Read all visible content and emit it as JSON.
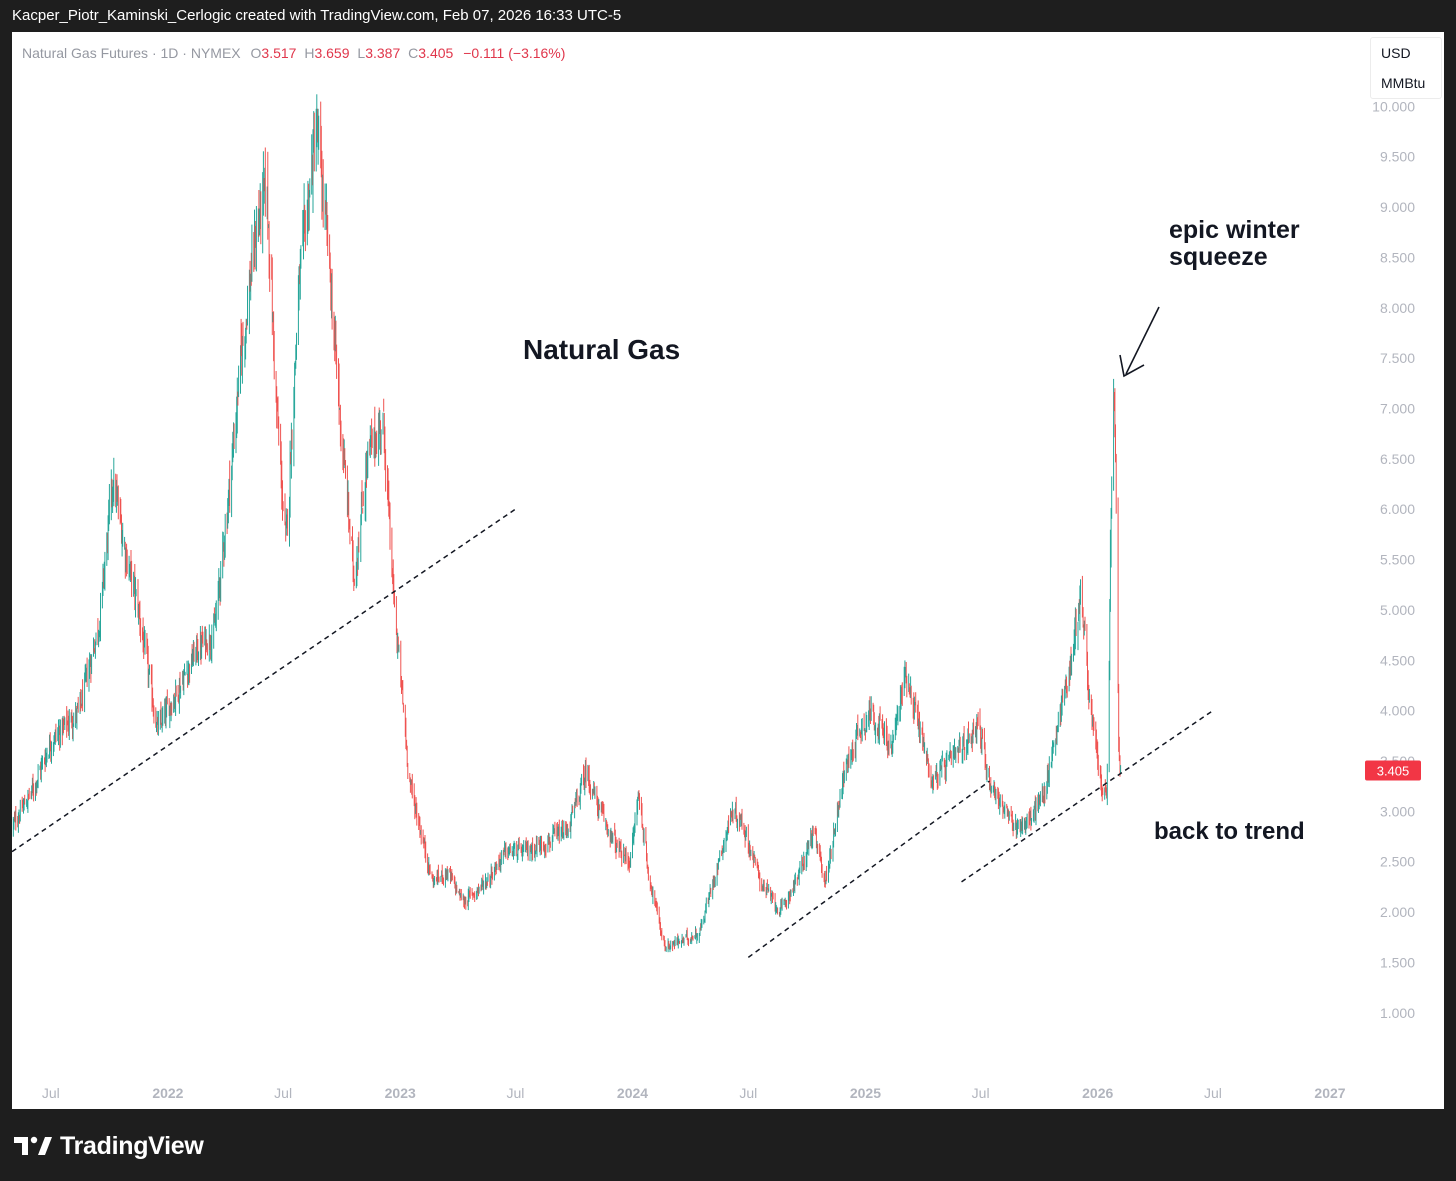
{
  "header": {
    "attribution": "Kacper_Piotr_Kaminski_Cerlogic created with TradingView.com, Feb 07, 2026 16:33 UTC-5"
  },
  "legend": {
    "symbol": "Natural Gas Futures · 1D · NYMEX",
    "o_label": "O",
    "o_value": "3.517",
    "h_label": "H",
    "h_value": "3.659",
    "l_label": "L",
    "l_value": "3.387",
    "c_label": "C",
    "c_value": "3.405",
    "change": "−0.111 (−3.16%)"
  },
  "units": {
    "currency": "USD",
    "unit": "MMBtu"
  },
  "annotations": {
    "title": "Natural Gas",
    "squeeze_line1": "epic winter",
    "squeeze_line2": "squeeze",
    "trend": "back to trend"
  },
  "price_tag": {
    "value": "3.405",
    "color": "#f23645"
  },
  "colors": {
    "up": "#26a69a",
    "down": "#ef5350",
    "tag": "#f23645"
  },
  "footer": {
    "brand": "TradingView",
    "logo_icon": "tradingview-logo-icon"
  },
  "chart_data": {
    "type": "candlestick",
    "title": "Natural Gas",
    "xlabel": "",
    "ylabel": "",
    "ylim": [
      0.7,
      10.45
    ],
    "y_ticks": [
      "1.000",
      "1.500",
      "2.000",
      "2.500",
      "3.000",
      "3.500",
      "4.000",
      "4.500",
      "5.000",
      "5.500",
      "6.000",
      "6.500",
      "7.000",
      "7.500",
      "8.000",
      "8.500",
      "9.000",
      "9.500",
      "10.000"
    ],
    "x_ticks": [
      {
        "label": "Jul",
        "date": "2021-07-01"
      },
      {
        "label": "2022",
        "date": "2022-01-01"
      },
      {
        "label": "Jul",
        "date": "2022-07-01"
      },
      {
        "label": "2023",
        "date": "2023-01-01"
      },
      {
        "label": "Jul",
        "date": "2023-07-01"
      },
      {
        "label": "2024",
        "date": "2024-01-01"
      },
      {
        "label": "Jul",
        "date": "2024-07-01"
      },
      {
        "label": "2025",
        "date": "2025-01-01"
      },
      {
        "label": "Jul",
        "date": "2025-07-01"
      },
      {
        "label": "2026",
        "date": "2026-01-01"
      },
      {
        "label": "Jul",
        "date": "2026-07-01"
      },
      {
        "label": "2027",
        "date": "2027-01-01"
      }
    ],
    "grid": false,
    "last_close": 3.405,
    "price_path": [
      [
        "2021-05-01",
        2.85
      ],
      [
        "2021-06-01",
        3.2
      ],
      [
        "2021-07-01",
        3.7
      ],
      [
        "2021-08-15",
        4.0
      ],
      [
        "2021-09-15",
        4.9
      ],
      [
        "2021-10-06",
        6.3
      ],
      [
        "2021-10-25",
        5.6
      ],
      [
        "2021-11-15",
        5.0
      ],
      [
        "2021-12-15",
        3.8
      ],
      [
        "2022-01-15",
        4.2
      ],
      [
        "2022-02-15",
        4.6
      ],
      [
        "2022-03-15",
        4.8
      ],
      [
        "2022-04-10",
        6.4
      ],
      [
        "2022-04-25",
        7.5
      ],
      [
        "2022-05-20",
        8.8
      ],
      [
        "2022-06-05",
        9.2
      ],
      [
        "2022-06-20",
        7.0
      ],
      [
        "2022-07-05",
        5.6
      ],
      [
        "2022-07-25",
        8.2
      ],
      [
        "2022-08-22",
        9.8
      ],
      [
        "2022-09-10",
        8.5
      ],
      [
        "2022-09-28",
        6.9
      ],
      [
        "2022-10-20",
        5.3
      ],
      [
        "2022-11-10",
        6.5
      ],
      [
        "2022-12-05",
        6.9
      ],
      [
        "2022-12-20",
        5.2
      ],
      [
        "2023-01-15",
        3.3
      ],
      [
        "2023-02-20",
        2.3
      ],
      [
        "2023-03-15",
        2.4
      ],
      [
        "2023-04-10",
        2.1
      ],
      [
        "2023-05-15",
        2.3
      ],
      [
        "2023-06-15",
        2.6
      ],
      [
        "2023-07-15",
        2.6
      ],
      [
        "2023-08-20",
        2.7
      ],
      [
        "2023-09-20",
        2.8
      ],
      [
        "2023-10-20",
        3.4
      ],
      [
        "2023-11-10",
        3.0
      ],
      [
        "2023-12-10",
        2.6
      ],
      [
        "2023-12-28",
        2.5
      ],
      [
        "2024-01-10",
        3.2
      ],
      [
        "2024-01-25",
        2.4
      ],
      [
        "2024-02-20",
        1.65
      ],
      [
        "2024-03-20",
        1.72
      ],
      [
        "2024-04-15",
        1.8
      ],
      [
        "2024-05-10",
        2.4
      ],
      [
        "2024-06-05",
        3.0
      ],
      [
        "2024-06-20",
        2.9
      ],
      [
        "2024-07-20",
        2.3
      ],
      [
        "2024-08-20",
        2.0
      ],
      [
        "2024-09-20",
        2.4
      ],
      [
        "2024-10-10",
        2.8
      ],
      [
        "2024-10-30",
        2.3
      ],
      [
        "2024-11-25",
        3.3
      ],
      [
        "2024-12-20",
        3.8
      ],
      [
        "2025-01-10",
        4.0
      ],
      [
        "2025-02-10",
        3.6
      ],
      [
        "2025-03-05",
        4.4
      ],
      [
        "2025-03-20",
        4.0
      ],
      [
        "2025-04-15",
        3.3
      ],
      [
        "2025-05-15",
        3.5
      ],
      [
        "2025-06-10",
        3.7
      ],
      [
        "2025-06-25",
        3.9
      ],
      [
        "2025-07-15",
        3.3
      ],
      [
        "2025-08-20",
        2.85
      ],
      [
        "2025-09-15",
        2.9
      ],
      [
        "2025-10-10",
        3.2
      ],
      [
        "2025-10-30",
        3.9
      ],
      [
        "2025-11-20",
        4.5
      ],
      [
        "2025-12-05",
        5.2
      ],
      [
        "2025-12-20",
        4.0
      ],
      [
        "2026-01-05",
        3.3
      ],
      [
        "2026-01-15",
        3.1
      ],
      [
        "2026-01-20",
        5.4
      ],
      [
        "2026-01-26",
        7.35
      ],
      [
        "2026-01-30",
        6.0
      ],
      [
        "2026-02-02",
        3.4
      ],
      [
        "2026-02-07",
        3.405
      ]
    ],
    "trendlines": [
      {
        "from": [
          "2021-05-01",
          2.6
        ],
        "to": [
          "2023-07-01",
          6.0
        ]
      },
      {
        "from": [
          "2024-07-01",
          1.55
        ],
        "to": [
          "2025-07-15",
          3.3
        ]
      },
      {
        "from": [
          "2025-06-01",
          2.3
        ],
        "to": [
          "2026-07-01",
          4.0
        ]
      }
    ]
  }
}
